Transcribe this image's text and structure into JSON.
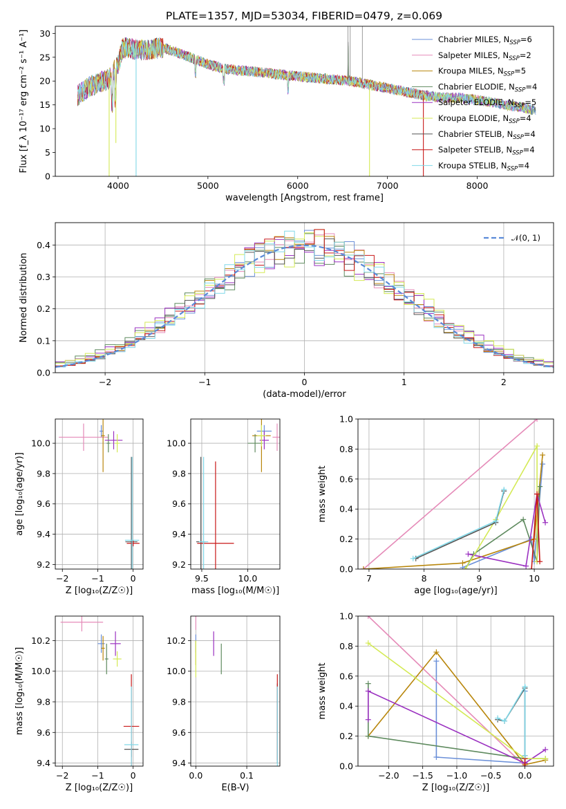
{
  "figure": {
    "title": "PLATE=1357, MJD=53034, FIBERID=0479, z=0.069"
  },
  "models": [
    {
      "name": "Chabrier MILES",
      "nssp": "6",
      "color": "#6a8fd8"
    },
    {
      "name": "Salpeter MILES",
      "nssp": "2",
      "color": "#e58ab8"
    },
    {
      "name": "Kroupa MILES",
      "nssp": "5",
      "color": "#b8860b"
    },
    {
      "name": "Chabrier ELODIE",
      "nssp": "4",
      "color": "#5e8a5e"
    },
    {
      "name": "Salpeter ELODIE",
      "nssp": "5",
      "color": "#9a30c0"
    },
    {
      "name": "Kroupa ELODIE",
      "nssp": "4",
      "color": "#d4ea55"
    },
    {
      "name": "Chabrier STELIB",
      "nssp": "4",
      "color": "#555555"
    },
    {
      "name": "Salpeter STELIB",
      "nssp": "4",
      "color": "#c81818"
    },
    {
      "name": "Kroupa STELIB",
      "nssp": "4",
      "color": "#7fd8e8"
    }
  ],
  "chart_data": [
    {
      "id": "spectrum",
      "type": "line",
      "xlabel": "wavelength [Angstrom, rest frame]",
      "ylabel": "Flux [f_λ 10⁻¹⁷ erg cm⁻² s⁻¹ A⁻¹]",
      "xlim": [
        3300,
        8850
      ],
      "ylim": [
        0,
        31.5
      ],
      "xticks": [
        4000,
        5000,
        6000,
        7000,
        8000
      ],
      "yticks": [
        0,
        5,
        10,
        15,
        20,
        25,
        30
      ],
      "grid": false,
      "legend": "top-right",
      "continuum": {
        "x": [
          3550,
          3700,
          3900,
          4000,
          4050,
          4300,
          4500,
          4800,
          5000,
          5200,
          5500,
          6000,
          6300,
          6600,
          7000,
          7400,
          7600,
          7800,
          8000,
          8200,
          8300,
          8500,
          8600
        ],
        "y": [
          17,
          19,
          20.5,
          23.5,
          27,
          26.5,
          27,
          25,
          23.5,
          22.5,
          22,
          21,
          20.5,
          20,
          18.5,
          17,
          16.5,
          16.5,
          16,
          15.5,
          15,
          14.5,
          14
        ]
      },
      "dips": [
        {
          "x": 3900,
          "y": 0,
          "model": 5
        },
        {
          "x": 3975,
          "y": 7,
          "model": 5
        },
        {
          "x": 4200,
          "y": 0,
          "model": 8
        },
        {
          "x": 6800,
          "y": 0,
          "model": 5
        },
        {
          "x": 7400,
          "y": 0,
          "model": 7
        }
      ]
    },
    {
      "id": "residuals",
      "type": "line",
      "xlabel": "(data-model)/error",
      "ylabel": "Normed distribution",
      "xlim": [
        -2.5,
        2.5
      ],
      "ylim": [
        0,
        0.47
      ],
      "xticks": [
        -2,
        -1,
        0,
        1,
        2
      ],
      "yticks": [
        0,
        0.1,
        0.2,
        0.3,
        0.4
      ],
      "grid": true,
      "legend": "top-right",
      "gaussian_label": "𝒩(0, 1)",
      "gaussian_color": "#5a8ad8"
    },
    {
      "id": "age-vs-Z",
      "type": "scatter",
      "xlabel": "Z [log₁₀(Z/Z☉)]",
      "ylabel": "age  [log₁₀(age/yr)]",
      "xlim": [
        -2.2,
        0.28
      ],
      "ylim": [
        9.17,
        10.16
      ],
      "xticks": [
        -2,
        -1,
        0
      ],
      "yticks": [
        9.2,
        9.4,
        9.6,
        9.8,
        10.0
      ],
      "grid": true,
      "points": [
        {
          "x": -0.9,
          "y": 10.08,
          "xe": 0.05,
          "ye": 0.04,
          "model": 0
        },
        {
          "x": -1.4,
          "y": 10.04,
          "xe": 0.7,
          "ye": 0.09,
          "model": 1
        },
        {
          "x": -0.85,
          "y": 10.05,
          "xe": 0.05,
          "ye": 0.24,
          "model": 2
        },
        {
          "x": -0.7,
          "y": 10.0,
          "xe": 0.05,
          "ye": 0.06,
          "model": 3
        },
        {
          "x": -0.55,
          "y": 10.02,
          "xe": 0.25,
          "ye": 0.06,
          "model": 4
        },
        {
          "x": -0.45,
          "y": 10.0,
          "xe": 0.07,
          "ye": 0.06,
          "model": 5
        },
        {
          "x": -0.05,
          "y": 9.35,
          "xe": 0.17,
          "ye": 0.56,
          "model": 6
        },
        {
          "x": 0.0,
          "y": 9.34,
          "xe": 0.18,
          "ye": 0.02,
          "model": 7
        },
        {
          "x": -0.03,
          "y": 9.36,
          "xe": 0.2,
          "ye": 0.55,
          "model": 8
        }
      ]
    },
    {
      "id": "age-vs-mass",
      "type": "scatter",
      "xlabel": "mass [log₁₀(M/M☉)]",
      "ylabel": "",
      "xlim": [
        9.38,
        10.35
      ],
      "ylim": [
        9.17,
        10.16
      ],
      "xticks": [
        9.5,
        10.0
      ],
      "yticks": [
        9.2,
        9.4,
        9.6,
        9.8,
        10.0
      ],
      "grid": true,
      "points": [
        {
          "x": 10.18,
          "y": 10.08,
          "xe": 0.08,
          "ye": 0.04,
          "model": 0
        },
        {
          "x": 10.32,
          "y": 10.04,
          "xe": 0.05,
          "ye": 0.09,
          "model": 1
        },
        {
          "x": 10.15,
          "y": 10.05,
          "xe": 0.1,
          "ye": 0.24,
          "model": 2
        },
        {
          "x": 10.08,
          "y": 10.0,
          "xe": 0.08,
          "ye": 0.06,
          "model": 3
        },
        {
          "x": 10.18,
          "y": 10.02,
          "xe": 0.05,
          "ye": 0.06,
          "model": 4
        },
        {
          "x": 10.15,
          "y": 10.05,
          "xe": 0.05,
          "ye": 0.07,
          "model": 5
        },
        {
          "x": 9.49,
          "y": 9.35,
          "xe": 0.05,
          "ye": 0.56,
          "model": 6
        },
        {
          "x": 9.65,
          "y": 9.34,
          "xe": 0.2,
          "ye": 0.54,
          "model": 7
        },
        {
          "x": 9.52,
          "y": 9.35,
          "xe": 0.05,
          "ye": 0.56,
          "model": 8
        }
      ]
    },
    {
      "id": "weight-vs-age",
      "type": "line",
      "xlabel": "age  [log₁₀(age/yr)]",
      "ylabel": "mass weight",
      "xlim": [
        6.8,
        10.35
      ],
      "ylim": [
        0,
        1.0
      ],
      "xticks": [
        7,
        8,
        9,
        10
      ],
      "yticks": [
        0.0,
        0.2,
        0.4,
        0.6,
        0.8,
        1.0
      ],
      "grid": true,
      "series": [
        {
          "model": 0,
          "x": [
            8.7,
            9.95,
            10.0,
            10.15
          ],
          "y": [
            0.01,
            0.2,
            0.05,
            0.7
          ]
        },
        {
          "model": 1,
          "x": [
            6.9,
            10.05
          ],
          "y": [
            0.0,
            1.0
          ]
        },
        {
          "model": 2,
          "x": [
            6.9,
            8.7,
            10.0,
            10.15
          ],
          "y": [
            0.0,
            0.04,
            0.2,
            0.76
          ]
        },
        {
          "model": 3,
          "x": [
            8.75,
            8.9,
            9.8,
            10.05,
            10.1
          ],
          "y": [
            0.0,
            0.1,
            0.33,
            0.05,
            0.55
          ]
        },
        {
          "model": 4,
          "x": [
            8.8,
            9.85,
            10.05,
            10.2
          ],
          "y": [
            0.1,
            0.02,
            0.5,
            0.31
          ]
        },
        {
          "model": 5,
          "x": [
            8.75,
            9.3,
            10.05,
            10.05
          ],
          "y": [
            0.0,
            0.33,
            0.82,
            0.05
          ]
        },
        {
          "model": 6,
          "x": [
            7.85,
            9.3,
            9.45
          ],
          "y": [
            0.07,
            0.31,
            0.52
          ]
        },
        {
          "model": 7,
          "x": [
            9.95,
            10.05,
            10.1
          ],
          "y": [
            0.0,
            0.5,
            0.05
          ]
        },
        {
          "model": 8,
          "x": [
            7.8,
            9.3,
            9.45
          ],
          "y": [
            0.07,
            0.32,
            0.53
          ]
        }
      ]
    },
    {
      "id": "mass-vs-Z",
      "type": "scatter",
      "xlabel": "Z [log₁₀(Z/Z☉)]",
      "ylabel": "mass [log₁₀(M/M☉)]",
      "xlim": [
        -2.2,
        0.28
      ],
      "ylim": [
        9.38,
        10.36
      ],
      "xticks": [
        -2,
        -1,
        0
      ],
      "yticks": [
        9.4,
        9.6,
        9.8,
        10.0,
        10.2
      ],
      "grid": true,
      "points": [
        {
          "x": -0.9,
          "y": 10.18,
          "xe": 0.1,
          "ye": 0.06,
          "model": 0
        },
        {
          "x": -1.45,
          "y": 10.32,
          "xe": 0.6,
          "ye": 0.06,
          "model": 1
        },
        {
          "x": -0.85,
          "y": 10.15,
          "xe": 0.05,
          "ye": 0.08,
          "model": 2
        },
        {
          "x": -0.75,
          "y": 10.08,
          "xe": 0.05,
          "ye": 0.1,
          "model": 3
        },
        {
          "x": -0.5,
          "y": 10.18,
          "xe": 0.15,
          "ye": 0.08,
          "model": 4
        },
        {
          "x": -0.45,
          "y": 10.08,
          "xe": 0.12,
          "ye": 0.05,
          "model": 5
        },
        {
          "x": -0.05,
          "y": 9.49,
          "xe": 0.2,
          "ye": 0.05,
          "model": 6
        },
        {
          "x": -0.05,
          "y": 9.64,
          "xe": 0.22,
          "ye": 0.34,
          "model": 7
        },
        {
          "x": -0.05,
          "y": 9.52,
          "xe": 0.2,
          "ye": 0.38,
          "model": 8
        }
      ]
    },
    {
      "id": "mass-vs-EBV",
      "type": "scatter",
      "xlabel": "E(B-V)",
      "ylabel": "",
      "xlim": [
        -0.01,
        0.165
      ],
      "ylim": [
        9.38,
        10.36
      ],
      "xticks": [
        0.0,
        0.1
      ],
      "yticks": [
        9.4,
        9.6,
        9.8,
        10.0,
        10.2
      ],
      "grid": true,
      "points": [
        {
          "x": 0.0,
          "y": 10.18,
          "ye": 0.06,
          "model": 0
        },
        {
          "x": 0.0,
          "y": 10.32,
          "ye": 0.05,
          "model": 1
        },
        {
          "x": 0.0,
          "y": 10.12,
          "ye": 0.08,
          "model": 2
        },
        {
          "x": 0.05,
          "y": 10.08,
          "ye": 0.1,
          "model": 3
        },
        {
          "x": 0.035,
          "y": 10.18,
          "ye": 0.08,
          "model": 4
        },
        {
          "x": 0.0,
          "y": 10.08,
          "ye": 0.12,
          "model": 5
        },
        {
          "x": 0.16,
          "y": 9.66,
          "ye": 0.26,
          "model": 6
        },
        {
          "x": 0.16,
          "y": 9.7,
          "ye": 0.28,
          "model": 7
        },
        {
          "x": 0.16,
          "y": 9.64,
          "ye": 0.26,
          "model": 8
        }
      ]
    },
    {
      "id": "weight-vs-Z",
      "type": "line",
      "xlabel": "Z [log₁₀(Z/Z☉)]",
      "ylabel": "mass weight",
      "xlim": [
        -2.45,
        0.42
      ],
      "ylim": [
        0,
        1.0
      ],
      "xticks": [
        -2.0,
        -1.5,
        -1.0,
        -0.5,
        0.0
      ],
      "yticks": [
        0.0,
        0.2,
        0.4,
        0.6,
        0.8,
        1.0
      ],
      "grid": true,
      "series": [
        {
          "model": 0,
          "x": [
            -1.3,
            -1.3,
            0.0,
            0.0
          ],
          "y": [
            0.7,
            0.06,
            0.02,
            0.5
          ]
        },
        {
          "model": 1,
          "x": [
            -2.3,
            0.0
          ],
          "y": [
            1.0,
            0.0
          ]
        },
        {
          "model": 2,
          "x": [
            -2.3,
            -1.3,
            0.0,
            0.3
          ],
          "y": [
            0.2,
            0.76,
            0.01,
            0.04
          ]
        },
        {
          "model": 3,
          "x": [
            -2.3,
            -2.3,
            0.0,
            0.3
          ],
          "y": [
            0.55,
            0.2,
            0.05,
            0.05
          ]
        },
        {
          "model": 4,
          "x": [
            -2.3,
            -2.3,
            0.0,
            0.3
          ],
          "y": [
            0.31,
            0.5,
            0.02,
            0.11
          ]
        },
        {
          "model": 5,
          "x": [
            -2.3,
            0.0,
            0.3
          ],
          "y": [
            0.82,
            0.05,
            0.05
          ]
        },
        {
          "model": 6,
          "x": [
            -0.4,
            -0.3,
            0.0,
            0.0
          ],
          "y": [
            0.31,
            0.3,
            0.52,
            0.07
          ]
        },
        {
          "model": 7,
          "x": [
            0.0,
            0.0
          ],
          "y": [
            0.0,
            0.05
          ]
        },
        {
          "model": 8,
          "x": [
            -0.4,
            -0.3,
            0.0,
            0.0
          ],
          "y": [
            0.32,
            0.3,
            0.53,
            0.07
          ]
        }
      ]
    }
  ]
}
